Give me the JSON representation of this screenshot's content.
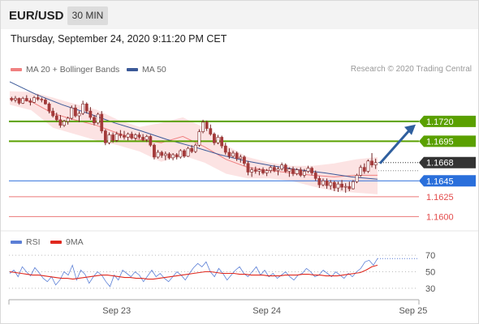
{
  "header": {
    "symbol": "EUR/USD",
    "timeframe": "30 MIN",
    "datetime": "Thursday, September 24, 2020 9:11:20 PM CET",
    "credit": "Research © 2020 Trading Central"
  },
  "legend": {
    "bollinger": {
      "label": "MA 20 + Bollinger Bands",
      "color": "#f08080"
    },
    "ma50": {
      "label": "MA 50",
      "color": "#3b5998"
    },
    "rsi": {
      "label": "RSI",
      "color": "#5b7fd6"
    },
    "rsi_ma": {
      "label": "9MA",
      "color": "#e0281e"
    }
  },
  "chart_data": [
    {
      "type": "candlestick",
      "title": "",
      "ylim": [
        1.1585,
        1.1775
      ],
      "x_ticks": [
        "Sep 23",
        "Sep 24",
        "Sep 25"
      ],
      "x_tick_index": [
        28,
        68,
        107
      ],
      "last_price": 1.1668,
      "levels": [
        {
          "value": 1.172,
          "label": "1.1720",
          "kind": "resistance",
          "color": "#5aa000"
        },
        {
          "value": 1.1695,
          "label": "1.1695",
          "kind": "resistance",
          "color": "#5aa000"
        },
        {
          "value": 1.1668,
          "label": "1.1668",
          "kind": "last",
          "color": "#333333"
        },
        {
          "value": 1.1645,
          "label": "1.1645",
          "kind": "pivot",
          "color": "#2a6fdb"
        },
        {
          "value": 1.1625,
          "label": "1.1625",
          "kind": "support",
          "color": "#e34a4a"
        },
        {
          "value": 1.16,
          "label": "1.1600",
          "kind": "support",
          "color": "#e34a4a"
        }
      ],
      "arrow": {
        "from": 1.1667,
        "to": 1.1716,
        "direction": "up",
        "color": "#2f5f9e"
      },
      "candles": [
        [
          1.1749,
          1.1751,
          1.1745,
          1.1747
        ],
        [
          1.1747,
          1.1752,
          1.1744,
          1.1749
        ],
        [
          1.1749,
          1.175,
          1.1741,
          1.1743
        ],
        [
          1.1743,
          1.1751,
          1.1742,
          1.1749
        ],
        [
          1.1749,
          1.1753,
          1.1745,
          1.1746
        ],
        [
          1.1746,
          1.1749,
          1.174,
          1.1744
        ],
        [
          1.1744,
          1.1752,
          1.1743,
          1.175
        ],
        [
          1.175,
          1.1754,
          1.1746,
          1.1748
        ],
        [
          1.1748,
          1.175,
          1.1744,
          1.1747
        ],
        [
          1.1747,
          1.1749,
          1.1741,
          1.1742
        ],
        [
          1.1742,
          1.1744,
          1.173,
          1.1733
        ],
        [
          1.1733,
          1.1737,
          1.1725,
          1.1727
        ],
        [
          1.1727,
          1.1731,
          1.172,
          1.1722
        ],
        [
          1.1722,
          1.1728,
          1.1712,
          1.1715
        ],
        [
          1.1715,
          1.1722,
          1.1713,
          1.172
        ],
        [
          1.172,
          1.1726,
          1.1716,
          1.1724
        ],
        [
          1.1724,
          1.174,
          1.1722,
          1.1737
        ],
        [
          1.1737,
          1.1741,
          1.1725,
          1.1727
        ],
        [
          1.1727,
          1.1733,
          1.1719,
          1.173
        ],
        [
          1.173,
          1.1746,
          1.1728,
          1.1742
        ],
        [
          1.1742,
          1.1744,
          1.173,
          1.1733
        ],
        [
          1.1733,
          1.1738,
          1.1722,
          1.1725
        ],
        [
          1.1725,
          1.1728,
          1.1715,
          1.1718
        ],
        [
          1.1718,
          1.1731,
          1.1716,
          1.1729
        ],
        [
          1.1729,
          1.1733,
          1.1705,
          1.1708
        ],
        [
          1.1708,
          1.171,
          1.169,
          1.1693
        ],
        [
          1.1693,
          1.1706,
          1.1691,
          1.1703
        ],
        [
          1.1703,
          1.1706,
          1.1693,
          1.1696
        ],
        [
          1.1696,
          1.1707,
          1.1694,
          1.1704
        ],
        [
          1.1704,
          1.1709,
          1.1699,
          1.1702
        ],
        [
          1.1702,
          1.1708,
          1.1697,
          1.17
        ],
        [
          1.17,
          1.1706,
          1.1696,
          1.1704
        ],
        [
          1.1704,
          1.1707,
          1.1697,
          1.1699
        ],
        [
          1.1699,
          1.1705,
          1.1696,
          1.1703
        ],
        [
          1.1703,
          1.1706,
          1.1698,
          1.17
        ],
        [
          1.17,
          1.1704,
          1.1695,
          1.1697
        ],
        [
          1.1697,
          1.1703,
          1.1694,
          1.1701
        ],
        [
          1.1701,
          1.1703,
          1.1688,
          1.169
        ],
        [
          1.169,
          1.1692,
          1.1672,
          1.1675
        ],
        [
          1.1675,
          1.1684,
          1.1673,
          1.1681
        ],
        [
          1.1681,
          1.1683,
          1.1674,
          1.1677
        ],
        [
          1.1677,
          1.1682,
          1.1671,
          1.1679
        ],
        [
          1.1679,
          1.1681,
          1.1672,
          1.1674
        ],
        [
          1.1674,
          1.168,
          1.1671,
          1.1678
        ],
        [
          1.1678,
          1.168,
          1.1672,
          1.1675
        ],
        [
          1.1675,
          1.1685,
          1.1673,
          1.1683
        ],
        [
          1.1683,
          1.1685,
          1.1674,
          1.1676
        ],
        [
          1.1676,
          1.1688,
          1.1675,
          1.1686
        ],
        [
          1.1686,
          1.169,
          1.168,
          1.1682
        ],
        [
          1.1682,
          1.1692,
          1.168,
          1.169
        ],
        [
          1.169,
          1.171,
          1.1688,
          1.1707
        ],
        [
          1.1707,
          1.1722,
          1.1705,
          1.1719
        ],
        [
          1.1719,
          1.1721,
          1.1708,
          1.1711
        ],
        [
          1.1711,
          1.1716,
          1.1702,
          1.1704
        ],
        [
          1.1704,
          1.1706,
          1.169,
          1.1693
        ],
        [
          1.1693,
          1.1703,
          1.1691,
          1.17
        ],
        [
          1.17,
          1.1702,
          1.1686,
          1.1689
        ],
        [
          1.1689,
          1.1693,
          1.1678,
          1.1681
        ],
        [
          1.1681,
          1.1686,
          1.1673,
          1.1676
        ],
        [
          1.1676,
          1.1683,
          1.1674,
          1.168
        ],
        [
          1.168,
          1.1682,
          1.167,
          1.1673
        ],
        [
          1.1673,
          1.1678,
          1.1668,
          1.1675
        ],
        [
          1.1675,
          1.1677,
          1.1664,
          1.1667
        ],
        [
          1.1667,
          1.167,
          1.1652,
          1.1656
        ],
        [
          1.1656,
          1.1662,
          1.165,
          1.1659
        ],
        [
          1.1659,
          1.1663,
          1.1654,
          1.1657
        ],
        [
          1.1657,
          1.1661,
          1.1652,
          1.1659
        ],
        [
          1.1659,
          1.1662,
          1.1653,
          1.1655
        ],
        [
          1.1655,
          1.166,
          1.1651,
          1.1658
        ],
        [
          1.1658,
          1.1664,
          1.1655,
          1.1662
        ],
        [
          1.1662,
          1.1665,
          1.1656,
          1.1658
        ],
        [
          1.1658,
          1.1663,
          1.1652,
          1.166
        ],
        [
          1.166,
          1.1668,
          1.1658,
          1.1665
        ],
        [
          1.1665,
          1.1667,
          1.1655,
          1.1657
        ],
        [
          1.1657,
          1.1662,
          1.165,
          1.166
        ],
        [
          1.166,
          1.1663,
          1.1651,
          1.1654
        ],
        [
          1.1654,
          1.1661,
          1.1652,
          1.1659
        ],
        [
          1.1659,
          1.1662,
          1.165,
          1.1652
        ],
        [
          1.1652,
          1.166,
          1.1649,
          1.1657
        ],
        [
          1.1657,
          1.1664,
          1.1655,
          1.1661
        ],
        [
          1.1661,
          1.1663,
          1.1652,
          1.1655
        ],
        [
          1.1655,
          1.1658,
          1.1645,
          1.1648
        ],
        [
          1.1648,
          1.1651,
          1.1636,
          1.164
        ],
        [
          1.164,
          1.1648,
          1.1638,
          1.1645
        ],
        [
          1.1645,
          1.1648,
          1.1635,
          1.1639
        ],
        [
          1.1639,
          1.1646,
          1.1634,
          1.1643
        ],
        [
          1.1643,
          1.1645,
          1.1632,
          1.1636
        ],
        [
          1.1636,
          1.1644,
          1.1631,
          1.1641
        ],
        [
          1.1641,
          1.1646,
          1.1633,
          1.1637
        ],
        [
          1.1637,
          1.1642,
          1.163,
          1.1638
        ],
        [
          1.1638,
          1.1644,
          1.1632,
          1.1635
        ],
        [
          1.1635,
          1.1646,
          1.1634,
          1.1644
        ],
        [
          1.1644,
          1.1654,
          1.1642,
          1.1652
        ],
        [
          1.1652,
          1.1665,
          1.165,
          1.1662
        ],
        [
          1.1662,
          1.1667,
          1.1654,
          1.1657
        ],
        [
          1.1657,
          1.1672,
          1.1655,
          1.167
        ],
        [
          1.167,
          1.168,
          1.1662,
          1.1665
        ],
        [
          1.1665,
          1.1673,
          1.166,
          1.1668
        ]
      ],
      "ma50": [
        1.177,
        1.1754,
        1.1741,
        1.173,
        1.1718,
        1.1708,
        1.1697,
        1.1688,
        1.1678,
        1.167,
        1.1664,
        1.1659,
        1.1655,
        1.165,
        1.1647
      ],
      "bb_mid": [
        1.1749,
        1.1745,
        1.173,
        1.1722,
        1.1715,
        1.1705,
        1.1697,
        1.1693,
        1.1701,
        1.1688,
        1.1672,
        1.1662,
        1.1658,
        1.1655,
        1.1652,
        1.165,
        1.1652,
        1.1652
      ],
      "bb_upper": [
        1.1758,
        1.1757,
        1.175,
        1.1742,
        1.1735,
        1.1722,
        1.1713,
        1.1718,
        1.1725,
        1.1712,
        1.169,
        1.1675,
        1.1668,
        1.1664,
        1.1664,
        1.1667,
        1.1672,
        1.1675
      ],
      "bb_lower": [
        1.1741,
        1.1734,
        1.1712,
        1.1704,
        1.1696,
        1.169,
        1.1682,
        1.1669,
        1.1677,
        1.1668,
        1.1654,
        1.1648,
        1.1648,
        1.1645,
        1.1638,
        1.1632,
        1.163,
        1.1628
      ]
    },
    {
      "type": "line",
      "title": "",
      "ylim": [
        20,
        80
      ],
      "y_ticks": [
        70,
        50,
        30
      ],
      "series": [
        {
          "name": "RSI",
          "values": [
            48,
            52,
            44,
            56,
            50,
            45,
            55,
            49,
            42,
            38,
            44,
            34,
            40,
            50,
            46,
            58,
            40,
            52,
            47,
            36,
            44,
            50,
            46,
            38,
            32,
            46,
            40,
            52,
            48,
            44,
            50,
            46,
            38,
            45,
            52,
            44,
            48,
            42,
            38,
            44,
            50,
            46,
            40,
            48,
            55,
            60,
            56,
            62,
            50,
            44,
            54,
            48,
            40,
            46,
            52,
            56,
            48,
            44,
            50,
            56,
            46,
            52,
            44,
            48,
            42,
            46,
            50,
            44,
            40,
            46,
            48,
            54,
            50,
            44,
            46,
            52,
            48,
            44,
            50,
            46,
            42,
            48,
            44,
            50,
            54,
            62,
            64,
            58,
            66
          ]
        },
        {
          "name": "9MA",
          "values": [
            50,
            49,
            48,
            47,
            46,
            46,
            45,
            44,
            43,
            42,
            42,
            41,
            42,
            43,
            44,
            45,
            46,
            46,
            45,
            44,
            43,
            43,
            42,
            42,
            41,
            41,
            42,
            43,
            44,
            45,
            46,
            47,
            48,
            49,
            50,
            50,
            49,
            48,
            48,
            48,
            47,
            47,
            46,
            46,
            46,
            45,
            45,
            45,
            46,
            46,
            46,
            47,
            47,
            46,
            46,
            45,
            45,
            45,
            46,
            47,
            48,
            49,
            52,
            56,
            58
          ]
        }
      ]
    }
  ],
  "xaxis": {
    "labels": [
      "Sep 23",
      "Sep 24",
      "Sep 25"
    ]
  },
  "rsi_axis": {
    "labels": [
      "70",
      "50",
      "30"
    ]
  }
}
